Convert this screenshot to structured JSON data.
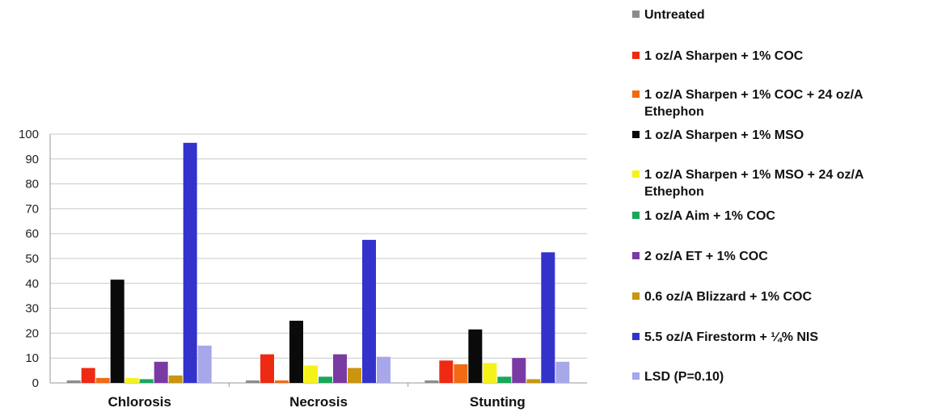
{
  "chart_data": {
    "type": "bar",
    "categories": [
      "Chlorosis",
      "Necrosis",
      "Stunting"
    ],
    "ylim": [
      0,
      100
    ],
    "yticks": [
      0,
      10,
      20,
      30,
      40,
      50,
      60,
      70,
      80,
      90,
      100
    ],
    "grid": true,
    "legend_position": "right",
    "series": [
      {
        "name": "Untreated",
        "legend_lines": [
          "Untreated"
        ],
        "color": "#8c8c8c",
        "values": [
          1,
          1,
          1
        ]
      },
      {
        "name": "1 oz/A Sharpen + 1% COC",
        "legend_lines": [
          "1 oz/A Sharpen + 1% COC"
        ],
        "color": "#ee2a12",
        "values": [
          6,
          11.5,
          9
        ]
      },
      {
        "name": "1 oz/A Sharpen + 1% COC + 24 oz/A Ethephon",
        "legend_lines": [
          "1 oz/A Sharpen + 1% COC + 24 oz/A",
          "Ethephon"
        ],
        "color": "#f26a12",
        "values": [
          2,
          1,
          7.5
        ]
      },
      {
        "name": "1 oz/A Sharpen + 1% MSO",
        "legend_lines": [
          "1 oz/A Sharpen + 1% MSO"
        ],
        "color": "#0a0a0a",
        "values": [
          41.5,
          25,
          21.5
        ]
      },
      {
        "name": "1 oz/A Sharpen + 1% MSO + 24 oz/A Ethephon",
        "legend_lines": [
          "1 oz/A Sharpen + 1% MSO + 24 oz/A",
          "Ethephon"
        ],
        "color": "#f5f21a",
        "values": [
          2,
          7,
          8
        ]
      },
      {
        "name": "1 oz/A Aim + 1% COC",
        "legend_lines": [
          "1 oz/A Aim + 1% COC"
        ],
        "color": "#18a85a",
        "values": [
          1.5,
          2.5,
          2.5
        ]
      },
      {
        "name": "2 oz/A ET + 1% COC",
        "legend_lines": [
          "2 oz/A ET + 1% COC"
        ],
        "color": "#7a3aa3",
        "values": [
          8.5,
          11.5,
          10
        ]
      },
      {
        "name": "0.6 oz/A Blizzard + 1% COC",
        "legend_lines": [
          "0.6 oz/A Blizzard + 1% COC"
        ],
        "color": "#c9960e",
        "values": [
          3,
          6,
          1.5
        ]
      },
      {
        "name": "5.5 oz/A Firestorm + ¼% NIS",
        "legend_lines": [
          "5.5 oz/A Firestorm + ¼% NIS"
        ],
        "color": "#3333cc",
        "values": [
          96.5,
          57.5,
          52.5
        ]
      },
      {
        "name": "LSD (P=0.10)",
        "legend_lines": [
          "LSD (P=0.10)"
        ],
        "color": "#a7a7ea",
        "values": [
          15,
          10.5,
          8.5
        ]
      }
    ]
  }
}
